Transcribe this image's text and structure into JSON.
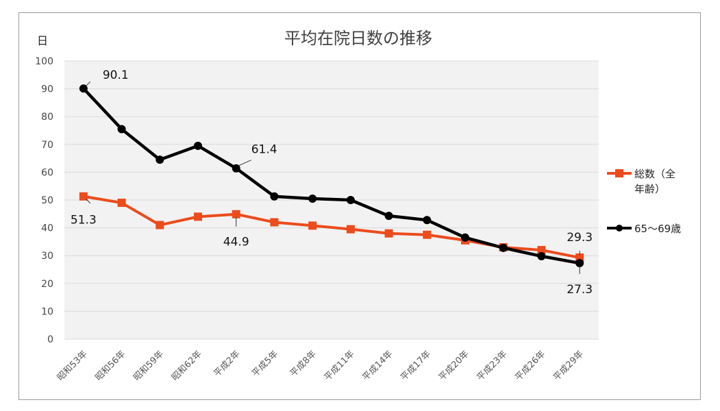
{
  "chart_data": {
    "type": "line",
    "title": "平均在院日数の推移",
    "ylabel": "日",
    "ylim": [
      0,
      100
    ],
    "yticks": [
      0,
      10,
      20,
      30,
      40,
      50,
      60,
      70,
      80,
      90,
      100
    ],
    "grid": true,
    "legend_position": "right",
    "categories": [
      "昭和53年",
      "昭和56年",
      "昭和59年",
      "昭和62年",
      "平成2年",
      "平成5年",
      "平成8年",
      "平成11年",
      "平成14年",
      "平成17年",
      "平成20年",
      "平成23年",
      "平成26年",
      "平成29年"
    ],
    "series": [
      {
        "name": "総数（全年齢）",
        "name_lines": [
          "総数（全",
          "年齢）"
        ],
        "color": "#ec4b1c",
        "marker": "square",
        "values": [
          51.3,
          49.0,
          41.0,
          44.0,
          44.9,
          42.0,
          40.8,
          39.5,
          38.0,
          37.5,
          35.5,
          33.0,
          32.0,
          29.3
        ]
      },
      {
        "name": "65～69歳",
        "name_lines": [
          "65～69歳"
        ],
        "color": "#000000",
        "marker": "circle",
        "values": [
          90.1,
          75.5,
          64.5,
          69.5,
          61.4,
          51.3,
          50.5,
          50.0,
          44.3,
          42.8,
          36.5,
          32.8,
          29.8,
          27.3
        ]
      }
    ],
    "data_labels": [
      {
        "series": 1,
        "index": 0,
        "text": "90.1"
      },
      {
        "series": 0,
        "index": 0,
        "text": "51.3"
      },
      {
        "series": 1,
        "index": 4,
        "text": "61.4"
      },
      {
        "series": 0,
        "index": 4,
        "text": "44.9"
      },
      {
        "series": 0,
        "index": 13,
        "text": "29.3"
      },
      {
        "series": 1,
        "index": 13,
        "text": "27.3"
      }
    ]
  }
}
